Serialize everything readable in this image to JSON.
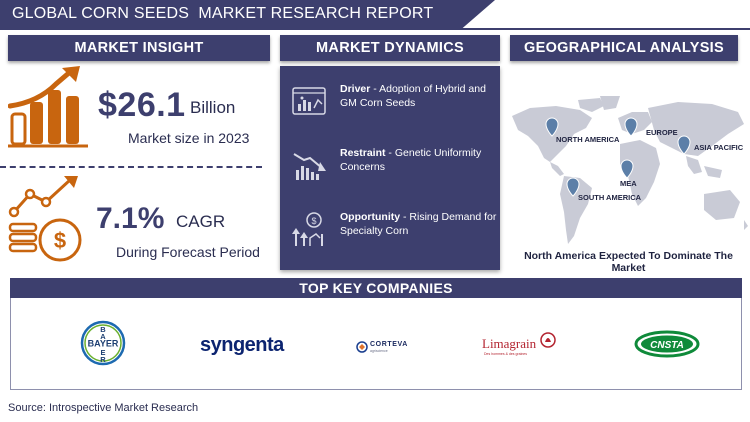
{
  "header": {
    "title": "GLOBAL CORN SEEDS  MARKET RESEARCH REPORT"
  },
  "market_insight": {
    "title": "MARKET INSIGHT",
    "market_size_value": "$26.1",
    "market_size_unit": "Billion",
    "market_size_caption": "Market size in 2023",
    "cagr_value": "7.1%",
    "cagr_unit": "CAGR",
    "cagr_caption": "During Forecast Period"
  },
  "market_dynamics": {
    "title": "MARKET DYNAMICS",
    "items": [
      {
        "label": "Driver",
        "text": " - Adoption of Hybrid and GM Corn Seeds",
        "icon": "chart-analysis-icon"
      },
      {
        "label": "Restraint",
        "text": " - Genetic Uniformity Concerns",
        "icon": "declining-chart-icon"
      },
      {
        "label": "Opportunity",
        "text": " - Rising Demand for Specialty Corn",
        "icon": "growth-opportunity-icon"
      }
    ]
  },
  "geographical_analysis": {
    "title": "GEOGRAPHICAL ANALYSIS",
    "regions": [
      "NORTH AMERICA",
      "EUROPE",
      "ASIA PACIFIC",
      "MEA",
      "SOUTH AMERICA"
    ],
    "caption": "North America Expected To Dominate The Market"
  },
  "top_companies": {
    "title": "TOP KEY COMPANIES",
    "logos": [
      "BAYER",
      "syngenta",
      "CORTEVA",
      "Limagrain",
      "CNSTA"
    ],
    "corteva_tagline": "agriscience",
    "limagrain_tagline": "Des hommes & des graines"
  },
  "footer": {
    "source": "Source: Introspective Market Research"
  },
  "colors": {
    "navy": "#3d3f6e",
    "orange": "#c8650f",
    "map_gray": "#c9cbd6",
    "pin": "#5c7fa8"
  }
}
